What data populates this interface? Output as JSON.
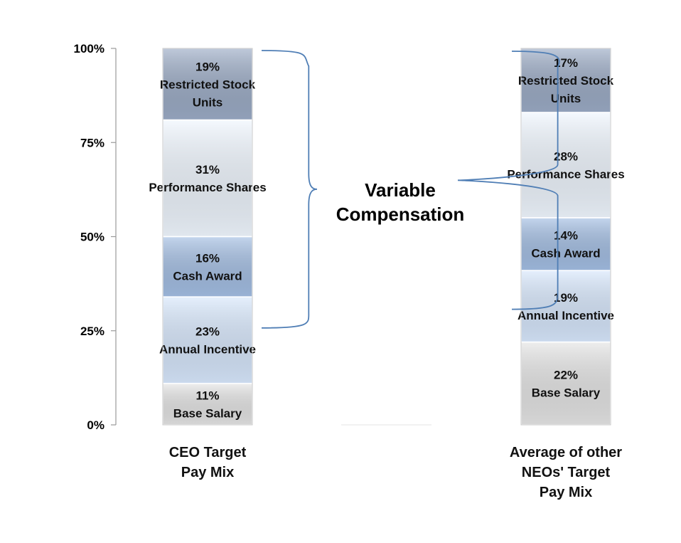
{
  "chart_data": {
    "type": "bar",
    "stacked": true,
    "y_ticks": [
      "0%",
      "25%",
      "50%",
      "75%",
      "100%"
    ],
    "ylim": [
      0,
      100
    ],
    "categories": [
      [
        "CEO Target",
        "Pay Mix"
      ],
      [
        "Average of other",
        "NEOs' Target",
        "Pay Mix"
      ]
    ],
    "series": [
      {
        "name": "Base Salary",
        "values": [
          11,
          22
        ],
        "labels": [
          "11%",
          "22%"
        ],
        "color": "#e3e3e3"
      },
      {
        "name": "Annual Incentive",
        "values": [
          23,
          19
        ],
        "labels": [
          "23%",
          "19%"
        ],
        "color": "#d6e6fb"
      },
      {
        "name": "Cash Award",
        "values": [
          16,
          14
        ],
        "labels": [
          "16%",
          "14%"
        ],
        "color": "#a2bde2"
      },
      {
        "name": "Performance Shares",
        "values": [
          31,
          28
        ],
        "labels": [
          "31%",
          "28%"
        ],
        "color": "#eef5fd"
      },
      {
        "name": "Restricted Stock Units",
        "values": [
          19,
          17
        ],
        "labels": [
          "19%",
          "17%"
        ],
        "color": "#9aaac4"
      }
    ],
    "series_display": [
      [
        [
          "Base Salary"
        ],
        [
          "Base Salary"
        ]
      ],
      [
        [
          "Annual Incentive"
        ],
        [
          "Annual Incentive"
        ]
      ],
      [
        [
          "Cash Award"
        ],
        [
          "Cash Award"
        ]
      ],
      [
        [
          "Performance Shares"
        ],
        [
          "Performance Shares"
        ]
      ],
      [
        [
          "Restricted Stock",
          "Units"
        ],
        [
          "Restricted Stock",
          "Units"
        ]
      ]
    ],
    "annotation": {
      "lines": [
        "Variable",
        "Compensation"
      ]
    }
  }
}
